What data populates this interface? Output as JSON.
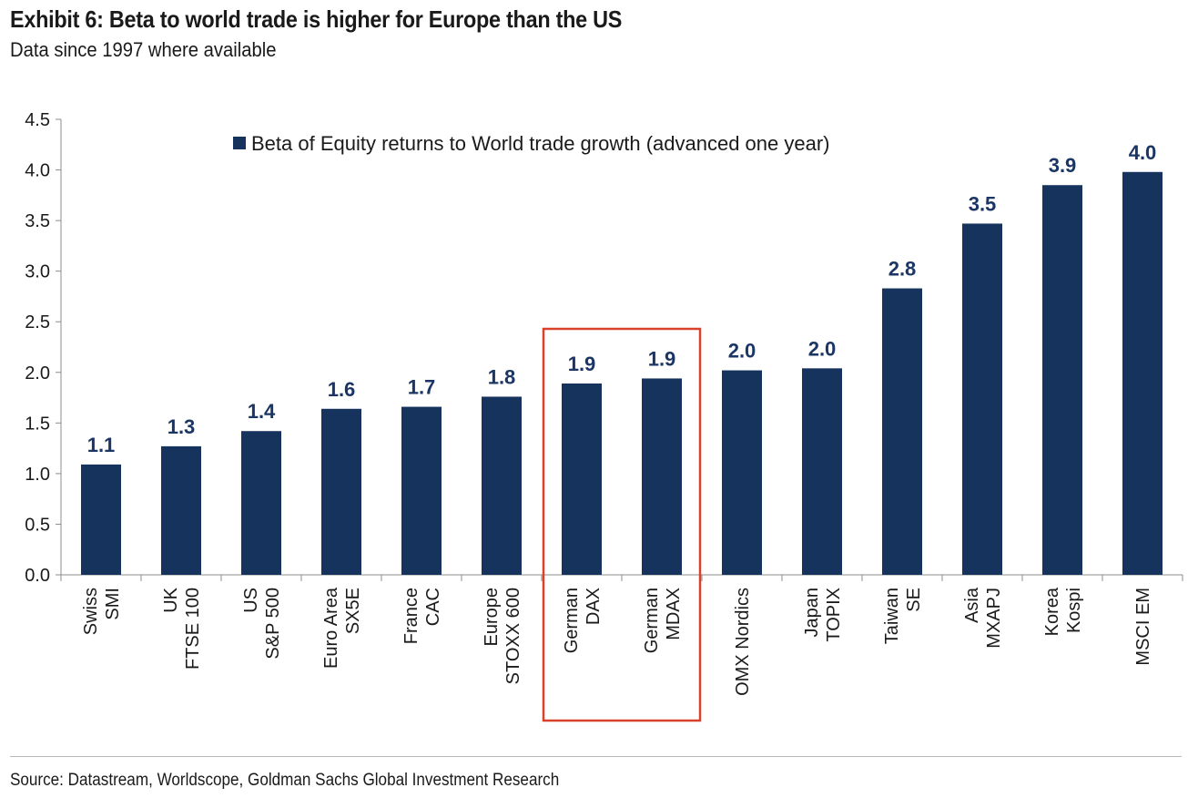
{
  "header": {
    "title": "Exhibit 6: Beta to world trade is higher for Europe than the US",
    "subtitle": "Data since 1997 where available"
  },
  "footer": {
    "source": "Source: Datastream, Worldscope, Goldman Sachs Global Investment Research"
  },
  "colors": {
    "bar": "#16335e",
    "label": "#1b3564",
    "highlight": "#d9412b",
    "axis": "#8c8c8c"
  },
  "chart_data": {
    "type": "bar",
    "title": "Exhibit 6: Beta to world trade is higher for Europe than the US",
    "subtitle": "Data since 1997 where available",
    "xlabel": "",
    "ylabel": "",
    "ylim": [
      0,
      4.5
    ],
    "yticks": [
      "0.0",
      "0.5",
      "1.0",
      "1.5",
      "2.0",
      "2.5",
      "3.0",
      "3.5",
      "4.0",
      "4.5"
    ],
    "legend_position": "top",
    "series": [
      {
        "name": "Beta of Equity returns to World trade growth (advanced one year)",
        "values": [
          1.09,
          1.27,
          1.42,
          1.64,
          1.66,
          1.76,
          1.89,
          1.94,
          2.02,
          2.04,
          2.83,
          3.47,
          3.85,
          3.98
        ],
        "labels": [
          "1.1",
          "1.3",
          "1.4",
          "1.6",
          "1.7",
          "1.8",
          "1.9",
          "1.9",
          "2.0",
          "2.0",
          "2.8",
          "3.5",
          "3.9",
          "4.0"
        ]
      }
    ],
    "categories": [
      [
        "Swiss",
        "SMI"
      ],
      [
        "UK",
        "FTSE 100"
      ],
      [
        "US",
        "S&P 500"
      ],
      [
        "Euro Area",
        "SX5E"
      ],
      [
        "France",
        "CAC"
      ],
      [
        "Europe",
        "STOXX 600"
      ],
      [
        "German",
        "DAX"
      ],
      [
        "German",
        "MDAX"
      ],
      [
        "OMX Nordics"
      ],
      [
        "Japan",
        "TOPIX"
      ],
      [
        "Taiwan",
        "SE"
      ],
      [
        "Asia",
        "MXAPJ"
      ],
      [
        "Korea",
        "Kospi"
      ],
      [
        "MSCI EM"
      ]
    ],
    "highlighted_categories": [
      6,
      7
    ],
    "grid": false
  }
}
